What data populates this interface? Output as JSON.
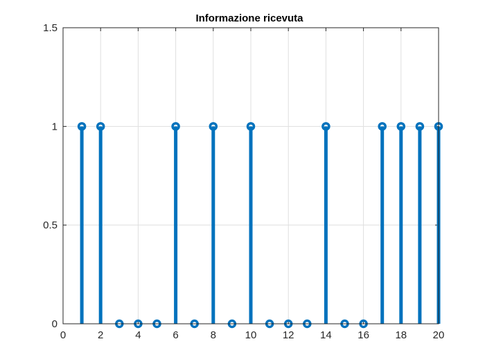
{
  "chart_data": {
    "type": "stem",
    "title": "Informazione ricevuta",
    "xlabel": "",
    "ylabel": "",
    "xlim": [
      0,
      20
    ],
    "ylim": [
      0,
      1.5
    ],
    "xticks": [
      0,
      2,
      4,
      6,
      8,
      10,
      12,
      14,
      16,
      18,
      20
    ],
    "yticks": [
      0,
      0.5,
      1,
      1.5
    ],
    "grid": true,
    "series": [
      {
        "x": [
          1,
          2,
          3,
          4,
          5,
          6,
          7,
          8,
          9,
          10,
          11,
          12,
          13,
          14,
          15,
          16,
          17,
          18,
          19,
          20
        ],
        "values": [
          1,
          1,
          0,
          0,
          0,
          1,
          0,
          1,
          0,
          1,
          0,
          0,
          0,
          1,
          0,
          0,
          1,
          1,
          1,
          1
        ],
        "color": "#0072BD",
        "marker": "circle"
      }
    ]
  }
}
